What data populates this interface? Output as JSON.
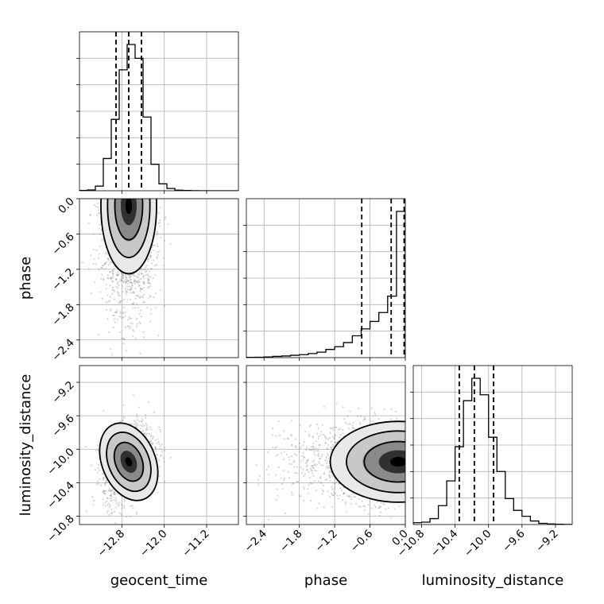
{
  "chart_data": {
    "type": "corner",
    "parameters": [
      "geocent_time",
      "phase",
      "luminosity_distance"
    ],
    "axis_labels": {
      "geocent_time": "geocent_time",
      "phase": "phase",
      "luminosity_distance": "luminosity_distance"
    },
    "ranges": {
      "geocent_time": [
        -13.6,
        -10.6
      ],
      "phase": [
        -2.7,
        0.0
      ],
      "luminosity_distance": [
        -10.9,
        -9.0
      ]
    },
    "ticks": {
      "geocent_time": [
        -12.8,
        -12.0,
        -11.2
      ],
      "phase": [
        -2.4,
        -1.8,
        -1.2,
        -0.6,
        0.0
      ],
      "luminosity_distance": [
        -10.8,
        -10.4,
        -10.0,
        -9.6,
        -9.2
      ]
    },
    "tick_labels": {
      "geocent_time": [
        "−12.8",
        "−12.0",
        "−11.2"
      ],
      "phase": [
        "−2.4",
        "−1.8",
        "−1.2",
        "−0.6",
        "0.0"
      ],
      "luminosity_distance": [
        "−10.8",
        "−10.4",
        "−10.0",
        "−9.6",
        "−9.2"
      ]
    },
    "histograms": {
      "geocent_time": {
        "bins": [
          -13.6,
          -13.45,
          -13.3,
          -13.15,
          -13.0,
          -12.85,
          -12.7,
          -12.55,
          -12.4,
          -12.25,
          -12.1,
          -11.95,
          -11.8,
          -11.65,
          -11.5,
          -11.35,
          -11.2,
          -11.05,
          -10.9,
          -10.75,
          -10.6
        ],
        "counts": [
          2,
          7,
          40,
          280,
          620,
          1050,
          1270,
          1150,
          640,
          230,
          60,
          20,
          5,
          2,
          1,
          0,
          0,
          0,
          0,
          0
        ]
      },
      "phase": {
        "bins": [
          -2.7,
          -2.55,
          -2.4,
          -2.25,
          -2.1,
          -1.95,
          -1.8,
          -1.65,
          -1.5,
          -1.35,
          -1.2,
          -1.05,
          -0.9,
          -0.75,
          -0.6,
          -0.45,
          -0.3,
          -0.15,
          0.0
        ],
        "counts": [
          2,
          3,
          5,
          9,
          12,
          17,
          22,
          30,
          40,
          60,
          80,
          110,
          160,
          210,
          265,
          330,
          450,
          1070
        ]
      },
      "luminosity_distance": {
        "bins": [
          -10.9,
          -10.8,
          -10.7,
          -10.6,
          -10.5,
          -10.4,
          -10.3,
          -10.2,
          -10.1,
          -10.0,
          -9.9,
          -9.8,
          -9.7,
          -9.6,
          -9.5,
          -9.4,
          -9.3,
          -9.2,
          -9.1,
          -9.0
        ],
        "counts": [
          15,
          20,
          50,
          160,
          370,
          660,
          1050,
          1240,
          1100,
          740,
          450,
          220,
          120,
          70,
          30,
          10,
          5,
          2,
          1
        ]
      }
    },
    "quantiles": {
      "geocent_time": [
        -12.91,
        -12.67,
        -12.43
      ],
      "phase": [
        -0.74,
        -0.24,
        -0.02
      ],
      "luminosity_distance": [
        -10.35,
        -10.17,
        -9.94
      ]
    },
    "joint": {
      "phase_vs_geocent_time": {
        "center": [
          -12.67,
          -0.12
        ],
        "spread": [
          0.25,
          0.55
        ],
        "corr": 0.0
      },
      "luminosity_distance_vs_geocent_time": {
        "center": [
          -12.67,
          -10.15
        ],
        "spread": [
          0.24,
          0.23
        ],
        "corr": 0.35
      },
      "luminosity_distance_vs_phase": {
        "center": [
          -0.12,
          -10.15
        ],
        "spread": [
          0.55,
          0.23
        ],
        "corr": 0.0
      }
    }
  }
}
